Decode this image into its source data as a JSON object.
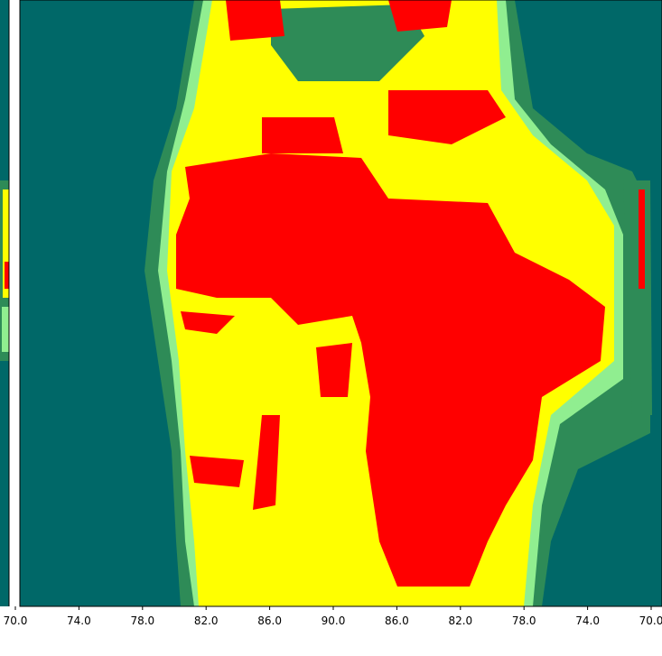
{
  "chart_data": {
    "type": "heatmap",
    "xticks": [
      {
        "value": 70,
        "label": "70.0"
      },
      {
        "value": 74,
        "label": "74.0"
      },
      {
        "value": 78,
        "label": "78.0"
      },
      {
        "value": 82,
        "label": "82.0"
      },
      {
        "value": 86,
        "label": "86.0"
      },
      {
        "value": 90,
        "label": "90.0"
      },
      {
        "value": 86,
        "label": "86.0"
      },
      {
        "value": 82,
        "label": "82.0"
      },
      {
        "value": 78,
        "label": "78.0"
      },
      {
        "value": 74,
        "label": "74.0"
      },
      {
        "value": 70,
        "label": "70.0"
      }
    ]
  }
}
